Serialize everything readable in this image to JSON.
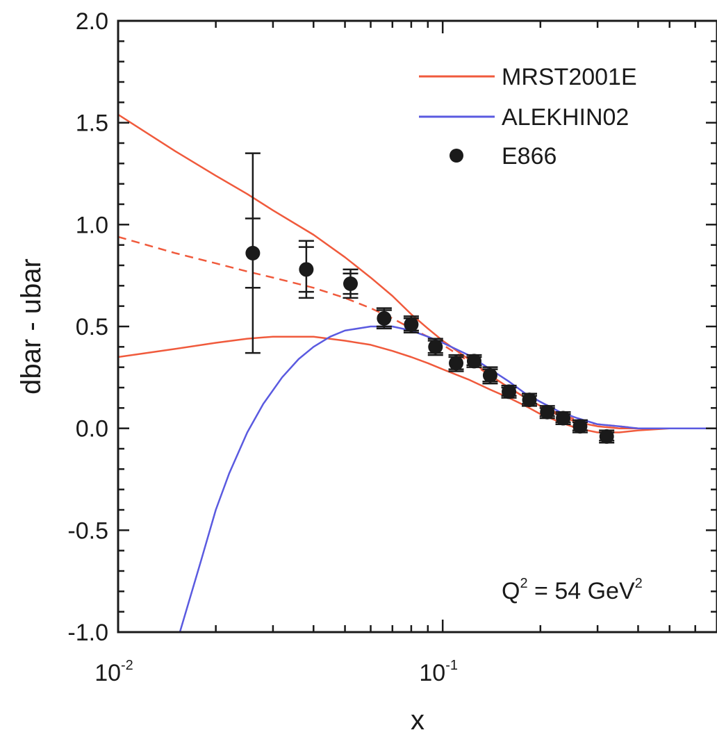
{
  "chart_data": {
    "type": "line",
    "xlabel": "x",
    "ylabel": "dbar - ubar",
    "xscale": "log",
    "xlim": [
      0.01,
      0.7
    ],
    "ylim": [
      -1.0,
      2.0
    ],
    "x_ticks": [
      {
        "value": 0.01,
        "base": "10",
        "exp": "-2"
      },
      {
        "value": 0.1,
        "base": "10",
        "exp": "-1"
      }
    ],
    "y_ticks": [
      {
        "value": -1.0,
        "label": "-1.0"
      },
      {
        "value": -0.5,
        "label": "-0.5"
      },
      {
        "value": 0.0,
        "label": "0.0"
      },
      {
        "value": 0.5,
        "label": "0.5"
      },
      {
        "value": 1.0,
        "label": "1.0"
      },
      {
        "value": 1.5,
        "label": "1.5"
      },
      {
        "value": 2.0,
        "label": "2.0"
      }
    ],
    "grid": false,
    "legend": {
      "position": "top-right",
      "entries": [
        {
          "label": "MRST2001E",
          "type": "line",
          "color": "#f05a3c"
        },
        {
          "label": "ALEKHIN02",
          "type": "line",
          "color": "#5a5ae0"
        },
        {
          "label": "E866",
          "type": "marker",
          "color": "#1a1a1a"
        }
      ]
    },
    "annotation": {
      "text": "Q",
      "sup1": "2",
      "middle": " = 54 GeV",
      "sup2": "2"
    },
    "series": [
      {
        "name": "MRST2001E",
        "color": "#f05a3c",
        "style": "solid",
        "role": "upper",
        "x": [
          0.01,
          0.015,
          0.02,
          0.025,
          0.03,
          0.04,
          0.05,
          0.06,
          0.07,
          0.08,
          0.09,
          0.1,
          0.12,
          0.14,
          0.16,
          0.18,
          0.2,
          0.23,
          0.26,
          0.3,
          0.35,
          0.4,
          0.5,
          0.7
        ],
        "y": [
          1.54,
          1.36,
          1.24,
          1.15,
          1.07,
          0.95,
          0.84,
          0.74,
          0.65,
          0.56,
          0.49,
          0.43,
          0.34,
          0.26,
          0.2,
          0.15,
          0.11,
          0.06,
          0.03,
          0.01,
          0.0,
          0.0,
          0.0,
          0.0
        ]
      },
      {
        "name": "MRST2001E",
        "color": "#f05a3c",
        "style": "dashed",
        "role": "central",
        "x": [
          0.01,
          0.015,
          0.02,
          0.025,
          0.03,
          0.04,
          0.05,
          0.06,
          0.07,
          0.08,
          0.09,
          0.1,
          0.12,
          0.14,
          0.16,
          0.18,
          0.2,
          0.23,
          0.26,
          0.3,
          0.35,
          0.4,
          0.5,
          0.7
        ],
        "y": [
          0.94,
          0.86,
          0.81,
          0.77,
          0.74,
          0.69,
          0.64,
          0.59,
          0.54,
          0.49,
          0.45,
          0.41,
          0.33,
          0.26,
          0.2,
          0.15,
          0.11,
          0.07,
          0.04,
          0.02,
          0.01,
          0.0,
          0.0,
          0.0
        ]
      },
      {
        "name": "MRST2001E",
        "color": "#f05a3c",
        "style": "solid",
        "role": "lower",
        "x": [
          0.01,
          0.015,
          0.02,
          0.025,
          0.03,
          0.035,
          0.04,
          0.05,
          0.06,
          0.07,
          0.08,
          0.09,
          0.1,
          0.12,
          0.14,
          0.16,
          0.18,
          0.2,
          0.23,
          0.26,
          0.3,
          0.35,
          0.4,
          0.5,
          0.7
        ],
        "y": [
          0.35,
          0.39,
          0.42,
          0.44,
          0.45,
          0.45,
          0.45,
          0.43,
          0.41,
          0.38,
          0.35,
          0.32,
          0.29,
          0.24,
          0.19,
          0.15,
          0.11,
          0.07,
          0.03,
          0.0,
          -0.02,
          -0.02,
          -0.01,
          0.0,
          0.0
        ]
      },
      {
        "name": "ALEKHIN02",
        "color": "#5a5ae0",
        "style": "solid",
        "role": "central",
        "x": [
          0.0155,
          0.018,
          0.02,
          0.022,
          0.025,
          0.028,
          0.032,
          0.036,
          0.04,
          0.045,
          0.05,
          0.06,
          0.07,
          0.08,
          0.09,
          0.1,
          0.12,
          0.14,
          0.16,
          0.18,
          0.2,
          0.23,
          0.26,
          0.3,
          0.35,
          0.4,
          0.5,
          0.7
        ],
        "y": [
          -1.0,
          -0.65,
          -0.4,
          -0.22,
          -0.02,
          0.12,
          0.25,
          0.34,
          0.4,
          0.45,
          0.48,
          0.5,
          0.5,
          0.48,
          0.45,
          0.42,
          0.36,
          0.29,
          0.23,
          0.17,
          0.13,
          0.08,
          0.05,
          0.02,
          0.01,
          0.0,
          0.0,
          0.0
        ]
      },
      {
        "name": "E866",
        "type": "scatter",
        "color": "#1a1a1a",
        "points": [
          {
            "x": 0.026,
            "y": 0.86,
            "err": 0.49,
            "err_inner": 0.17
          },
          {
            "x": 0.038,
            "y": 0.78,
            "err": 0.14,
            "err_inner": 0.11
          },
          {
            "x": 0.052,
            "y": 0.71,
            "err": 0.07,
            "err_inner": 0.05
          },
          {
            "x": 0.066,
            "y": 0.54,
            "err": 0.05,
            "err_inner": 0.04
          },
          {
            "x": 0.08,
            "y": 0.51,
            "err": 0.04,
            "err_inner": 0.03
          },
          {
            "x": 0.095,
            "y": 0.4,
            "err": 0.04,
            "err_inner": 0.03
          },
          {
            "x": 0.11,
            "y": 0.32,
            "err": 0.04,
            "err_inner": 0.03
          },
          {
            "x": 0.125,
            "y": 0.33,
            "err": 0.03,
            "err_inner": 0.02
          },
          {
            "x": 0.14,
            "y": 0.26,
            "err": 0.04,
            "err_inner": 0.03
          },
          {
            "x": 0.16,
            "y": 0.18,
            "err": 0.03,
            "err_inner": 0.02
          },
          {
            "x": 0.185,
            "y": 0.14,
            "err": 0.03,
            "err_inner": 0.02
          },
          {
            "x": 0.21,
            "y": 0.08,
            "err": 0.03,
            "err_inner": 0.02
          },
          {
            "x": 0.235,
            "y": 0.05,
            "err": 0.03,
            "err_inner": 0.02
          },
          {
            "x": 0.265,
            "y": 0.01,
            "err": 0.03,
            "err_inner": 0.02
          },
          {
            "x": 0.32,
            "y": -0.04,
            "err": 0.03,
            "err_inner": 0.02
          }
        ]
      }
    ]
  }
}
